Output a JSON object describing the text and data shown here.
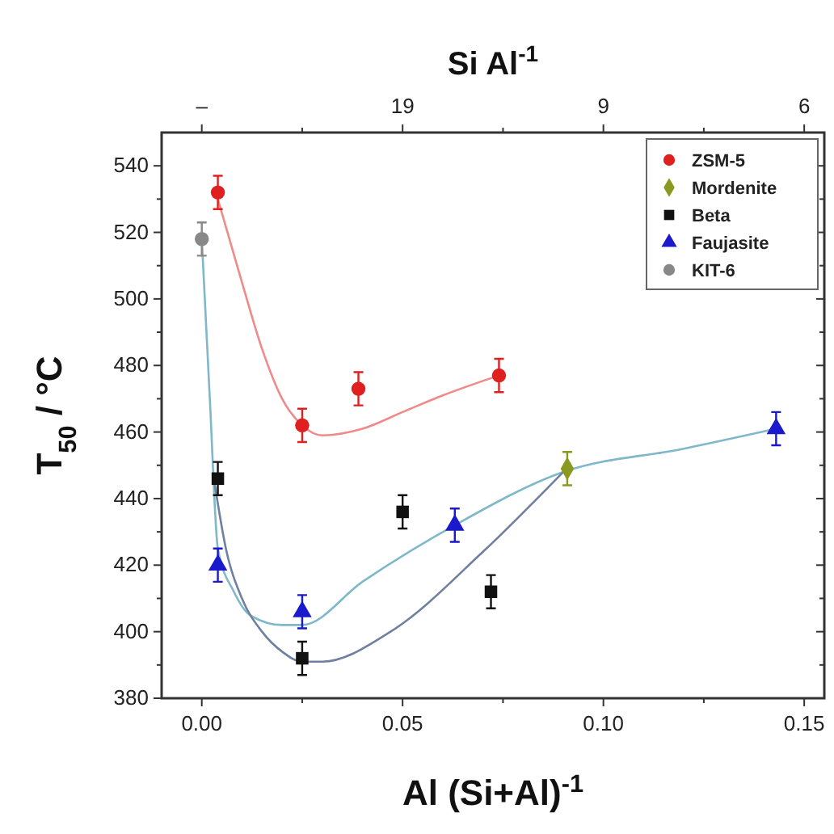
{
  "chart_data": {
    "type": "scatter",
    "xlabel": "Al (Si+Al)$^{-1}$",
    "ylabel": "T$_{50}$ / °C",
    "x2label": "Si Al$^{-1}$",
    "xlim": [
      -0.01,
      0.155
    ],
    "ylim": [
      380,
      550
    ],
    "xticks": [
      {
        "value": 0,
        "label": "0.00"
      },
      {
        "value": 0.025,
        "label": null
      },
      {
        "value": 0.05,
        "label": "0.05"
      },
      {
        "value": 0.075,
        "label": null
      },
      {
        "value": 0.1,
        "label": "0.10"
      },
      {
        "value": 0.125,
        "label": null
      },
      {
        "value": 0.15,
        "label": "0.15"
      }
    ],
    "annotations": [
      "–",
      "19",
      "9",
      "6"
    ],
    "yticks": [
      380,
      {
        "value": 390,
        "label": null
      },
      400,
      {
        "value": 410,
        "label": null
      },
      420,
      {
        "value": 430,
        "label": null
      },
      440,
      {
        "value": 450,
        "label": null
      },
      460,
      {
        "value": 470,
        "label": null
      },
      480,
      {
        "value": 490,
        "label": null
      },
      500,
      {
        "value": 510,
        "label": null
      },
      520,
      {
        "value": 530,
        "label": null
      },
      540
    ],
    "legend": "top right",
    "grid": false,
    "series": [
      {
        "type": "line",
        "color": "#f08a8a",
        "x": [
          0.004,
          0.01,
          0.015,
          0.02,
          0.025,
          0.03,
          0.04,
          0.05,
          0.06,
          0.074
        ],
        "values": [
          530,
          505,
          485,
          470,
          462,
          459,
          461,
          466,
          471,
          477
        ]
      },
      {
        "type": "line",
        "color": "#7fb8c8",
        "x": [
          0,
          0.002,
          0.004,
          0.008,
          0.012,
          0.02,
          0.025,
          0.04,
          0.063,
          0.09,
          0.12,
          0.143
        ],
        "values": [
          518,
          470,
          425,
          412,
          405,
          402,
          402,
          415,
          432,
          448,
          455,
          461
        ]
      },
      {
        "type": "line",
        "color": "#7080a0",
        "x": [
          0.003,
          0.006,
          0.01,
          0.015,
          0.02,
          0.025,
          0.03,
          0.047,
          0.07,
          0.09
        ],
        "values": [
          446,
          425,
          410,
          400,
          394,
          391,
          391,
          400,
          424,
          448
        ]
      },
      {
        "name": "ZSM-5",
        "color": "#e02020",
        "marker": "circle",
        "x": [
          0.004,
          0.025,
          0.039,
          0.074
        ],
        "values": [
          532,
          462,
          473,
          477
        ],
        "errors": [
          5,
          5,
          5,
          5
        ]
      },
      {
        "name": "Mordenite",
        "color": "#8a9a20",
        "marker": "diamond",
        "x": [
          0.091
        ],
        "values": [
          449
        ],
        "errors": [
          5
        ]
      },
      {
        "name": "Beta",
        "color": "#111111",
        "marker": "square",
        "x": [
          0.004,
          0.025,
          0.05,
          0.072
        ],
        "values": [
          446,
          392,
          436,
          412
        ],
        "errors": [
          5,
          5,
          5,
          5
        ]
      },
      {
        "name": "Faujasite",
        "color": "#1a1acc",
        "marker": "triangle",
        "x": [
          0.004,
          0.025,
          0.063,
          0.143
        ],
        "values": [
          420,
          406,
          432,
          461
        ],
        "errors": [
          5,
          5,
          5,
          5
        ]
      },
      {
        "name": "KIT-6",
        "color": "#888888",
        "marker": "circle",
        "x": [
          0
        ],
        "values": [
          518
        ],
        "errors": [
          5
        ]
      }
    ]
  }
}
